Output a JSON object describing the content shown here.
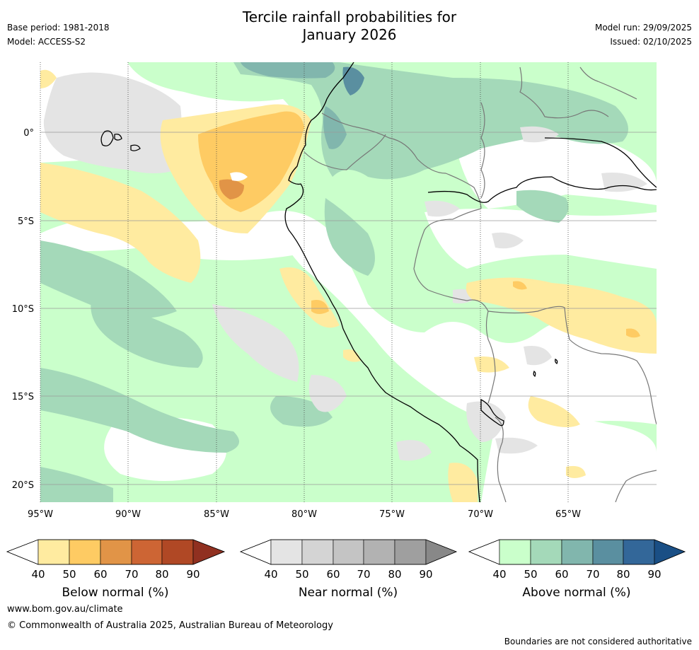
{
  "header": {
    "title_line1": "Tercile rainfall probabilities for",
    "title_line2": "January 2026",
    "base_period": "Base period: 1981-2018",
    "model": "Model: ACCESS-S2",
    "model_run": "Model run: 29/09/2025",
    "issued": "Issued: 02/10/2025"
  },
  "map": {
    "lat_labels": [
      "0°",
      "5°S",
      "10°S",
      "15°S",
      "20°S"
    ],
    "lon_labels": [
      "95°W",
      "90°W",
      "85°W",
      "80°W",
      "75°W",
      "70°W",
      "65°W"
    ]
  },
  "colorbars": {
    "ticks": [
      "40",
      "50",
      "60",
      "70",
      "80",
      "90"
    ],
    "below": {
      "label": "Below normal (%)",
      "colors": [
        "#ffffff",
        "#ffeba0",
        "#fecb63",
        "#e19447",
        "#cd6534",
        "#b04825",
        "#903020"
      ]
    },
    "near": {
      "label": "Near normal (%)",
      "colors": [
        "#ffffff",
        "#e4e4e4",
        "#d4d4d4",
        "#c4c4c4",
        "#b2b2b2",
        "#9f9f9f",
        "#888888"
      ]
    },
    "above": {
      "label": "Above normal (%)",
      "colors": [
        "#ffffff",
        "#caffcb",
        "#a4d9b9",
        "#81b6ad",
        "#5a8fa0",
        "#336799",
        "#1a4f85"
      ]
    }
  },
  "footer": {
    "url": "www.bom.gov.au/climate",
    "copyright": "© Commonwealth of Australia 2025, Australian Bureau of Meteorology",
    "disclaimer": "Boundaries are not considered authoritative"
  }
}
